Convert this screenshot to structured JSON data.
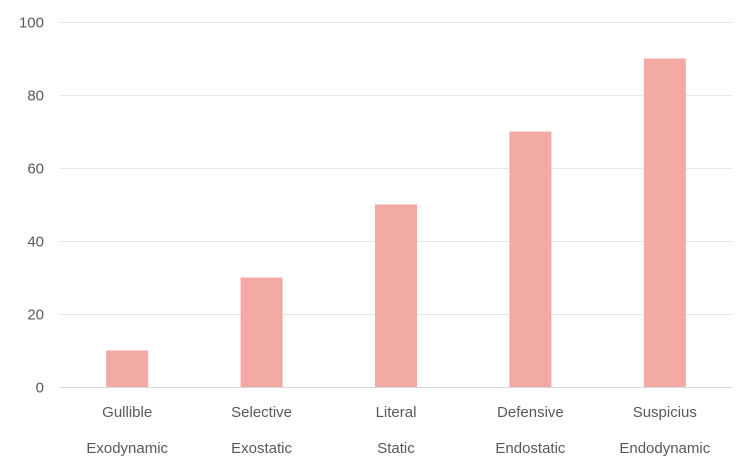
{
  "chart_data": {
    "type": "bar",
    "title": "",
    "xlabel": "",
    "ylabel": "",
    "ylim": [
      0,
      100
    ],
    "yticks": [
      0,
      20,
      40,
      60,
      80,
      100
    ],
    "grid": true,
    "legend": "none",
    "bar_color": "#f4aaa4",
    "grid_color": "#e6e6e6",
    "categories": [
      {
        "line1": "Gullible",
        "line2": "Exodynamic"
      },
      {
        "line1": "Selective",
        "line2": "Exostatic"
      },
      {
        "line1": "Literal",
        "line2": "Static"
      },
      {
        "line1": "Defensive",
        "line2": "Endostatic"
      },
      {
        "line1": "Suspicius",
        "line2": "Endodynamic"
      }
    ],
    "values": [
      10,
      30,
      50,
      70,
      90
    ]
  }
}
